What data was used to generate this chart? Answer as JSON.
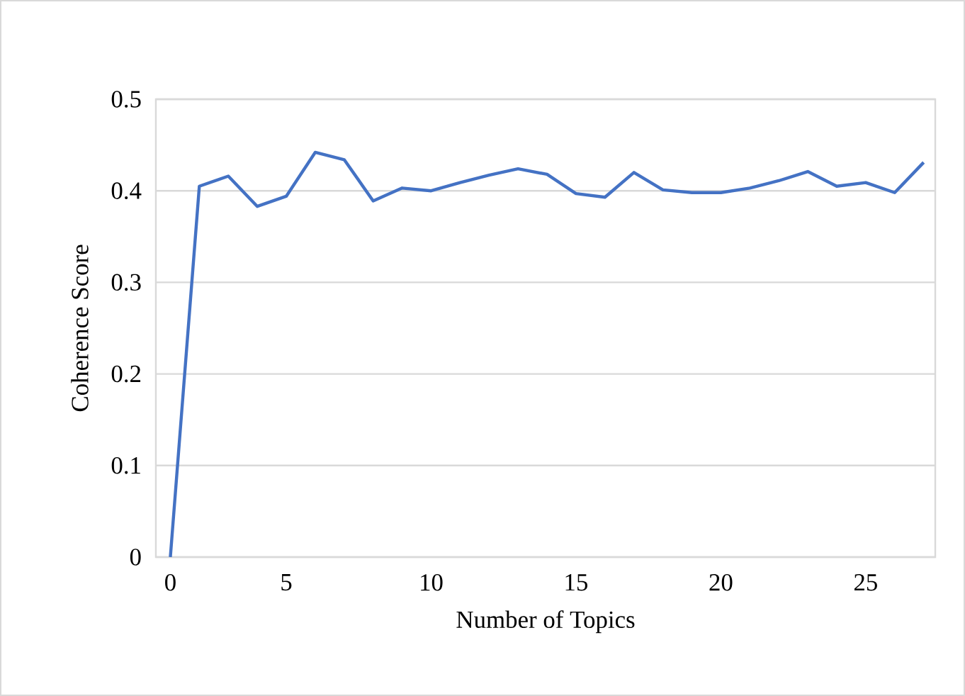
{
  "chart_data": {
    "type": "line",
    "xlabel": "Number of Topics",
    "ylabel": "Coherence Score",
    "categories": [
      "0",
      null,
      null,
      null,
      "5",
      null,
      null,
      null,
      null,
      "10",
      null,
      null,
      null,
      null,
      "15",
      null,
      null,
      null,
      null,
      "20",
      null,
      null,
      null,
      null,
      "25",
      null,
      null
    ],
    "series": [
      {
        "color": "#4472c4",
        "values": [
          0,
          0.405,
          0.416,
          0.383,
          0.394,
          0.442,
          0.434,
          0.389,
          0.403,
          0.4,
          0.409,
          0.417,
          0.424,
          0.418,
          0.397,
          0.393,
          0.42,
          0.401,
          0.398,
          0.398,
          0.403,
          0.411,
          0.421,
          0.405,
          0.409,
          0.398,
          0.431
        ]
      }
    ],
    "ylim": [
      0,
      0.5
    ],
    "yticks": [
      0,
      0.1,
      0.2,
      0.3,
      0.4,
      0.5
    ],
    "grid": "y",
    "marker": "none",
    "line_style": "solid"
  }
}
